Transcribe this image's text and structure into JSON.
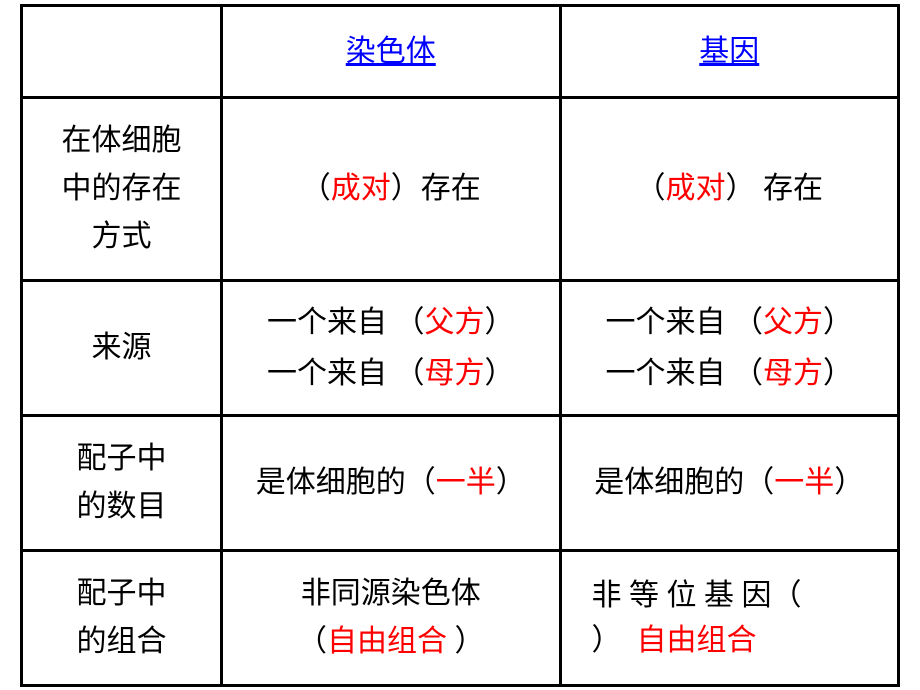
{
  "headers": {
    "col1": "染色体",
    "col2": "基因"
  },
  "rows": {
    "r1": {
      "label_l1": "在体细胞",
      "label_l2": "中的存在",
      "label_l3": "方式",
      "c1_open": "（",
      "c1_red": "成对",
      "c1_close": "）存在",
      "c2_open": "（",
      "c2_red": "成对",
      "c2_close": "） 存在"
    },
    "r2": {
      "label": "来源",
      "c1_l1_pre": "一个来自 （",
      "c1_l1_red": "父方",
      "c1_l1_post": "）",
      "c1_l2_pre": "一个来自 （",
      "c1_l2_red": "母方",
      "c1_l2_post": "）",
      "c2_l1_pre": "一个来自 （",
      "c2_l1_red": "父方",
      "c2_l1_post": "）",
      "c2_l2_pre": "一个来自 （",
      "c2_l2_red": "母方",
      "c2_l2_post": "）"
    },
    "r3": {
      "label_l1": "配子中",
      "label_l2": "的数目",
      "c1_pre": "是体细胞的（",
      "c1_red": "一半",
      "c1_post": "）",
      "c2_pre": "是体细胞的（",
      "c2_red": "一半",
      "c2_post": "）"
    },
    "r4": {
      "label_l1": "配子中",
      "label_l2": "的组合",
      "c1_l1": "非同源染色体",
      "c1_l2_open": "（",
      "c1_l2_red": "自由组合",
      "c1_l2_close": " ）",
      "c2_l1": "非 等 位 基 因（",
      "c2_l2_close": "）",
      "c2_l2_red": "自由组合"
    }
  }
}
